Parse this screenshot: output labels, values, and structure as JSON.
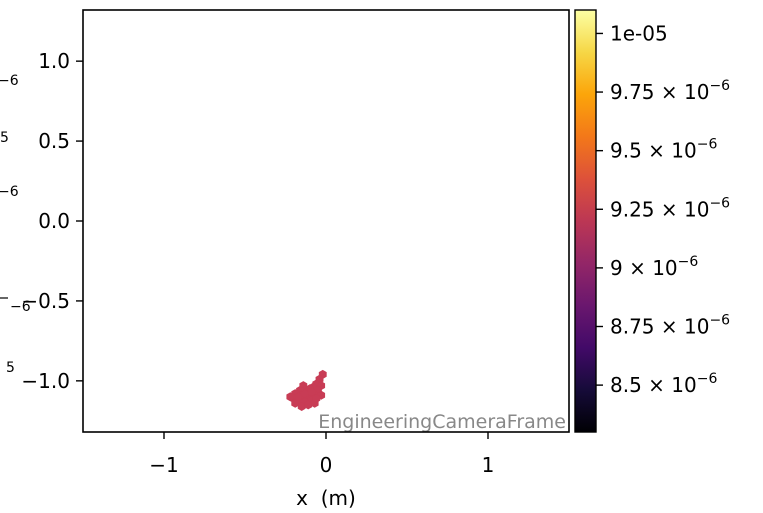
{
  "chart_data": {
    "type": "scatter",
    "title": "",
    "xlabel": "x  (m)",
    "ylabel": "",
    "xlim": [
      -1.5,
      1.5
    ],
    "ylim": [
      -1.32,
      1.32
    ],
    "x_ticks": [
      {
        "value": -1,
        "label": "−1"
      },
      {
        "value": 0,
        "label": "0"
      },
      {
        "value": 1,
        "label": "1"
      }
    ],
    "y_ticks": [
      {
        "value": 1.0,
        "label": "1.0"
      },
      {
        "value": 0.5,
        "label": "0.5"
      },
      {
        "value": 0.0,
        "label": "0.0"
      },
      {
        "value": -0.5,
        "label": "−0.5"
      },
      {
        "value": -1.0,
        "label": "−1.0"
      }
    ],
    "annotation": "EngineeringCameraFrame",
    "marker_color": "#c83c55",
    "points": [
      {
        "x": -0.02,
        "y": -0.96
      },
      {
        "x": -0.04,
        "y": -0.99
      },
      {
        "x": -0.06,
        "y": -1.02
      },
      {
        "x": -0.03,
        "y": -1.03
      },
      {
        "x": -0.08,
        "y": -1.04
      },
      {
        "x": -0.05,
        "y": -1.06
      },
      {
        "x": -0.1,
        "y": -1.05
      },
      {
        "x": -0.14,
        "y": -1.03
      },
      {
        "x": -0.12,
        "y": -1.07
      },
      {
        "x": -0.16,
        "y": -1.06
      },
      {
        "x": -0.19,
        "y": -1.08
      },
      {
        "x": -0.15,
        "y": -1.09
      },
      {
        "x": -0.11,
        "y": -1.1
      },
      {
        "x": -0.07,
        "y": -1.09
      },
      {
        "x": -0.03,
        "y": -1.09
      },
      {
        "x": -0.2,
        "y": -1.11
      },
      {
        "x": -0.22,
        "y": -1.1
      },
      {
        "x": -0.17,
        "y": -1.12
      },
      {
        "x": -0.13,
        "y": -1.13
      },
      {
        "x": -0.09,
        "y": -1.12
      },
      {
        "x": -0.19,
        "y": -1.14
      },
      {
        "x": -0.15,
        "y": -1.16
      },
      {
        "x": -0.11,
        "y": -1.15
      },
      {
        "x": -0.07,
        "y": -1.14
      },
      {
        "x": -0.13,
        "y": -1.08
      },
      {
        "x": -0.09,
        "y": -1.07
      },
      {
        "x": -0.17,
        "y": -1.1
      },
      {
        "x": -0.06,
        "y": -1.11
      }
    ],
    "colorbar": {
      "cmap": "inferno",
      "range": [
        8.3e-06,
        1.01e-05
      ],
      "ticks": [
        {
          "value": 1e-05,
          "label": "1e-05",
          "mantissa": "",
          "exponent": ""
        },
        {
          "value": 9.75e-06,
          "label": "",
          "mantissa": "9.75",
          "exponent": "−6"
        },
        {
          "value": 9.5e-06,
          "label": "",
          "mantissa": "9.5",
          "exponent": "−6"
        },
        {
          "value": 9.25e-06,
          "label": "",
          "mantissa": "9.25",
          "exponent": "−6"
        },
        {
          "value": 9e-06,
          "label": "",
          "mantissa": "9",
          "exponent": "−6"
        },
        {
          "value": 8.75e-06,
          "label": "",
          "mantissa": "8.75",
          "exponent": "−6"
        },
        {
          "value": 8.5e-06,
          "label": "",
          "mantissa": "8.5",
          "exponent": "−6"
        }
      ]
    },
    "left_fragments": [
      "−6",
      "5",
      "−6",
      "−6",
      "5"
    ]
  }
}
